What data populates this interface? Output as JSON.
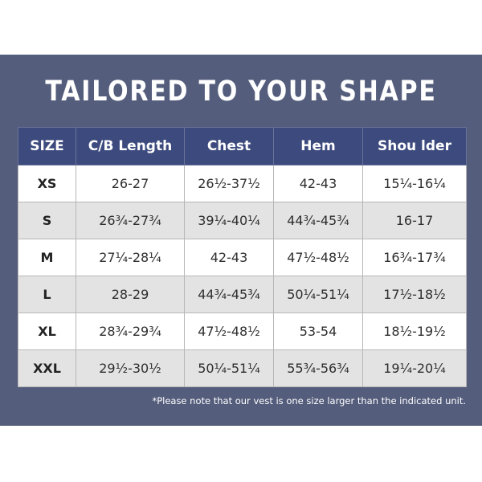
{
  "title": "TAILORED TO YOUR SHAPE",
  "table": {
    "headers": [
      "SIZE",
      "C/B Length",
      "Chest",
      "Hem",
      "Shou lder"
    ],
    "rows": [
      [
        "XS",
        "26-27",
        "26½-37½",
        "42-43",
        "15¼-16¼"
      ],
      [
        "S",
        "26¾-27¾",
        "39¼-40¼",
        "44¾-45¾",
        "16-17"
      ],
      [
        "M",
        "27¼-28¼",
        "42-43",
        "47½-48½",
        "16¾-17¾"
      ],
      [
        "L",
        "28-29",
        "44¾-45¾",
        "50¼-51¼",
        "17½-18½"
      ],
      [
        "XL",
        "28¾-29¾",
        "47½-48½",
        "53-54",
        "18½-19½"
      ],
      [
        "XXL",
        "29½-30½",
        "50¼-51¼",
        "55¾-56¾",
        "19¼-20¼"
      ]
    ]
  },
  "note": "*Please note that our vest is one size larger than the indicated unit.",
  "colors": {
    "background": "#545d7c",
    "header": "#3c4a7e",
    "row_alt": "#e3e3e3"
  }
}
